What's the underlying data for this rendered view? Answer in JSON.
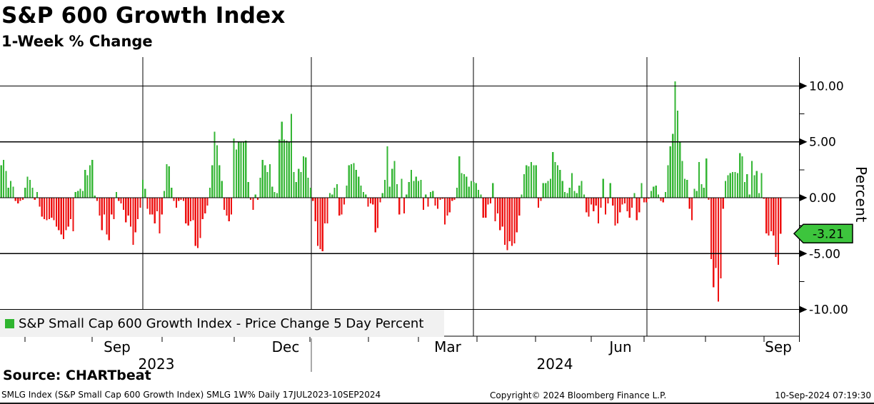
{
  "header": {
    "title": "S&P 600 Growth Index",
    "subtitle": "1-Week % Change"
  },
  "legend": {
    "label": "S&P Small Cap 600 Growth Index - Price Change 5 Day Percent",
    "swatch_color": "#2fb52f"
  },
  "last_value": {
    "label": "-3.21",
    "value": -3.21,
    "badge_color": "#3dc53d"
  },
  "axis": {
    "y_title": "Percent",
    "y_ticks": [
      {
        "value": 10,
        "label": "10.00"
      },
      {
        "value": 5,
        "label": "5.00"
      },
      {
        "value": 0,
        "label": "0.00"
      },
      {
        "value": -5,
        "label": "-5.00"
      },
      {
        "value": -10,
        "label": "-10.00"
      }
    ],
    "y_minor": [
      7.5,
      2.5,
      -2.5,
      -7.5
    ],
    "ylim": [
      -12.4,
      12.6
    ],
    "x_gridlines": [
      200,
      436,
      663,
      906
    ],
    "x_ticks": [
      35,
      129,
      227,
      328,
      434,
      516,
      586,
      668,
      750,
      828,
      902,
      988,
      1070
    ],
    "x_months": [
      {
        "label": "Sep",
        "x": 164
      },
      {
        "label": "Dec",
        "x": 400
      },
      {
        "label": "Mar",
        "x": 627
      },
      {
        "label": "Jun",
        "x": 869
      },
      {
        "label": "Sep",
        "x": 1090
      }
    ],
    "x_years": [
      {
        "label": "2023",
        "x": 219
      },
      {
        "label": "2024",
        "x": 777
      }
    ],
    "year_divider_x": 436
  },
  "footer": {
    "source": "Source: CHARTbeat",
    "meta": "SMLG Index (S&P Small Cap 600 Growth Index) SMLG 1W%  Daily 17JUL2023-10SEP2024",
    "copyright": "Copyright© 2024 Bloomberg Finance L.P.",
    "timestamp": "10-Sep-2024 07:19:30"
  },
  "chart_data": {
    "type": "bar",
    "title": "S&P 600 Growth Index — 1-Week % Change",
    "series_name": "S&P Small Cap 600 Growth Index - Price Change 5 Day Percent",
    "x_range": "17JUL2023-10SEP2024",
    "ylabel": "Percent",
    "up_color": "#35b635",
    "down_color": "#ee1111",
    "grid": true,
    "values": [
      2.9,
      3.4,
      2.4,
      0.9,
      1.5,
      1.0,
      -0.3,
      -0.5,
      -0.3,
      -0.2,
      0.9,
      1.9,
      1.6,
      0.9,
      -0.2,
      0.5,
      -0.8,
      -1.7,
      -1.9,
      -2.0,
      -1.9,
      -1.8,
      -2.0,
      -2.6,
      -2.9,
      -3.3,
      -3.7,
      -2.9,
      -2.6,
      -1.9,
      -3.0,
      0.5,
      0.6,
      0.8,
      0.6,
      2.5,
      2.0,
      2.9,
      3.4,
      0.2,
      -0.3,
      -1.6,
      -2.9,
      -1.5,
      -3.3,
      -3.8,
      -1.5,
      -1.9,
      0.5,
      -0.3,
      -0.5,
      -1.1,
      -2.2,
      -1.6,
      -2.6,
      -4.2,
      -3.1,
      -1.9,
      -0.9,
      1.6,
      0.8,
      -1.0,
      -1.5,
      -1.5,
      -2.3,
      -1.2,
      -3.2,
      -1.5,
      0.6,
      3.0,
      2.8,
      0.9,
      -0.3,
      -0.9,
      -0.3,
      -0.2,
      -0.3,
      -2.3,
      -2.5,
      -2.1,
      -2.0,
      -4.3,
      -4.5,
      -3.6,
      -1.9,
      -1.4,
      -0.7,
      0.9,
      2.9,
      5.9,
      4.7,
      2.9,
      1.5,
      -1.1,
      -1.6,
      -2.1,
      -1.5,
      5.3,
      4.3,
      5.0,
      5.0,
      5.0,
      5.1,
      1.4,
      -0.2,
      -1.1,
      0.3,
      -0.2,
      1.8,
      3.4,
      2.9,
      2.3,
      3.0,
      1.0,
      0.5,
      0.4,
      5.2,
      6.8,
      5.2,
      5.1,
      5.0,
      7.5,
      2.3,
      1.4,
      2.6,
      2.3,
      3.7,
      3.6,
      1.8,
      0.9,
      -0.3,
      -2.1,
      -4.3,
      -4.6,
      -4.8,
      -2.3,
      -2.3,
      0.4,
      0.3,
      0.9,
      1.2,
      -1.6,
      -1.5,
      -0.6,
      1.1,
      2.9,
      3.0,
      3.1,
      2.5,
      1.9,
      1.1,
      0.5,
      0.3,
      -0.8,
      -0.5,
      -0.6,
      -3.1,
      -2.7,
      -0.4,
      0.4,
      1.6,
      4.6,
      1.0,
      2.6,
      3.3,
      1.2,
      -1.5,
      1.7,
      -1.4,
      0.3,
      1.4,
      2.5,
      1.5,
      1.9,
      1.5,
      1.6,
      -1.1,
      0.3,
      -0.8,
      0.5,
      0.6,
      -0.7,
      -1.0,
      -0.2,
      -0.1,
      -2.4,
      -1.6,
      -1.3,
      -0.3,
      -0.2,
      0.9,
      3.7,
      2.2,
      2.1,
      1.9,
      1.0,
      1.5,
      1.4,
      1.3,
      0.7,
      0.3,
      -1.8,
      -1.8,
      -0.6,
      -0.5,
      1.3,
      -2.1,
      -1.4,
      -2.9,
      -2.6,
      -4.2,
      -4.7,
      -3.9,
      -4.3,
      -4.1,
      -3.1,
      -1.6,
      0.3,
      2.1,
      2.9,
      2.8,
      3.2,
      2.9,
      2.9,
      -0.9,
      -0.3,
      1.3,
      1.3,
      1.5,
      1.7,
      4.1,
      3.2,
      2.9,
      2.5,
      1.5,
      0.5,
      0.4,
      0.9,
      2.2,
      0.6,
      0.4,
      1.1,
      1.5,
      0.3,
      -1.3,
      -1.7,
      -0.6,
      -1.2,
      -0.7,
      -2.3,
      -0.9,
      1.7,
      -1.5,
      -0.5,
      1.3,
      -0.7,
      -2.5,
      -2.3,
      -1.3,
      -0.6,
      -0.5,
      -1.2,
      -1.8,
      -0.9,
      0.4,
      -2.0,
      -1.3,
      1.3,
      -0.4,
      -0.4,
      -0.1,
      0.6,
      1.0,
      1.1,
      0.3,
      -0.3,
      -0.4,
      0.5,
      2.9,
      4.6,
      5.7,
      10.4,
      7.8,
      5.0,
      3.3,
      1.7,
      1.6,
      -1.0,
      -2.0,
      0.8,
      0.6,
      3.2,
      1.2,
      0.9,
      3.5,
      -0.2,
      -5.5,
      -8.0,
      -6.3,
      -9.3,
      -7.2,
      -1.0,
      1.5,
      2.0,
      2.2,
      2.3,
      2.3,
      2.2,
      4.0,
      3.7,
      1.4,
      2.1,
      0.3,
      3.3,
      2.0,
      2.4,
      0.4,
      2.2,
      -0.1,
      -3.2,
      -3.4,
      -3.0,
      -3.4,
      -5.3,
      -6.0,
      -3.21
    ]
  }
}
